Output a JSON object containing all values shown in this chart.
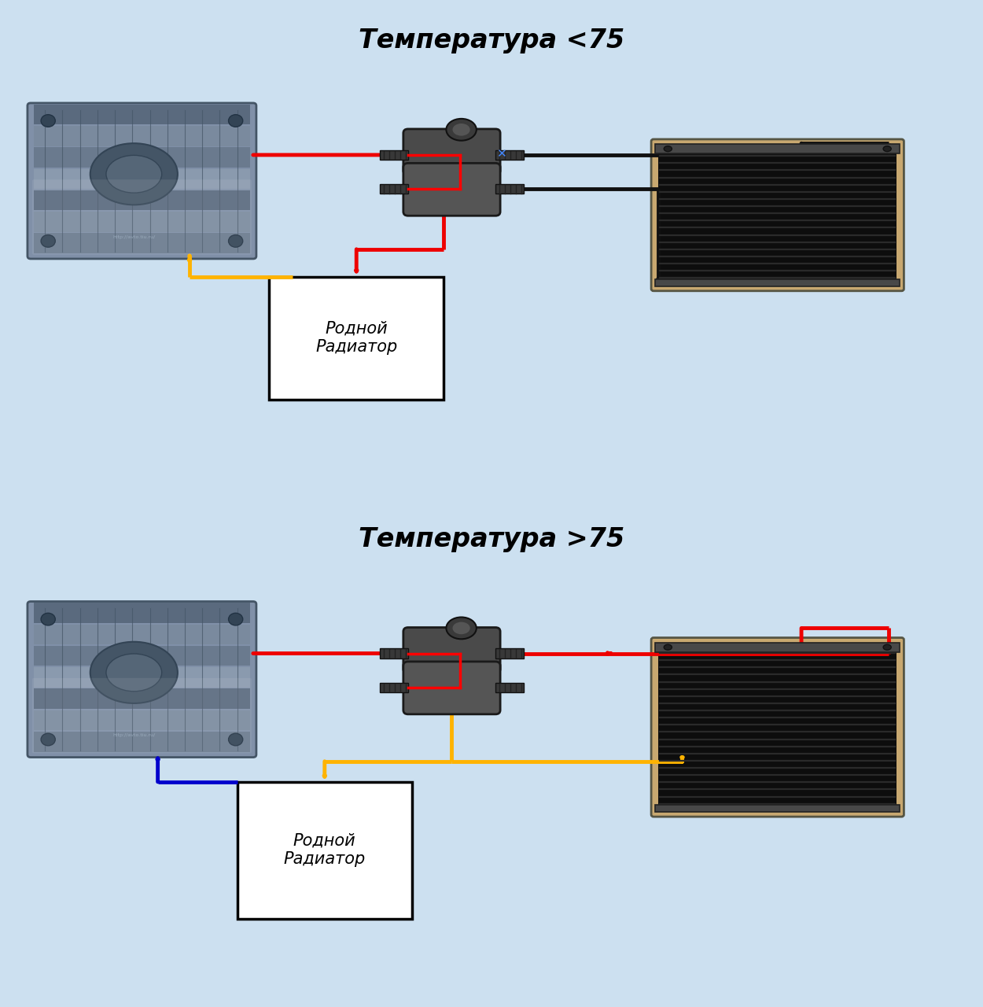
{
  "bg_color": "#cce0f0",
  "panel_bg": "#ffffff",
  "title1": "Температура <75",
  "title2": "Температура >75",
  "title_fontsize": 24,
  "title_style": "italic",
  "title_weight": "bold",
  "label_rodnoj": "Родной\nРадиатор",
  "label_fontsize": 15,
  "arrow_lw": 3.5,
  "red": "#ee0000",
  "yellow": "#FFB300",
  "blue": "#0000cc",
  "black": "#111111"
}
